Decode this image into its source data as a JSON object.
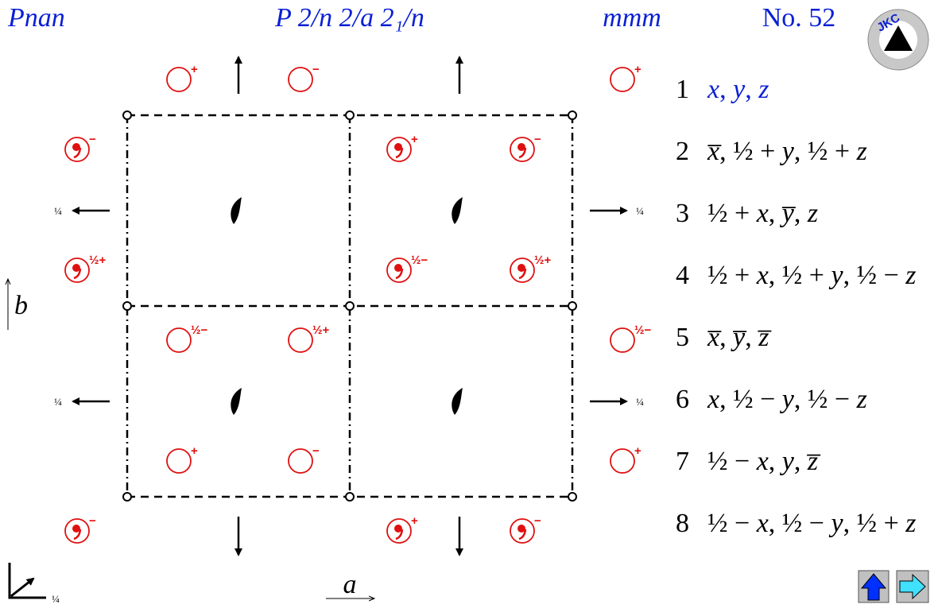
{
  "header": {
    "short_symbol": "Pnan",
    "full_symbol": "P 2/n 2/a 2₁/n",
    "point_group": "mmm",
    "number": "No. 52",
    "logo": "JKC"
  },
  "diagram": {
    "symbols": [
      {
        "label": "+",
        "comma": false
      },
      {
        "label": "−",
        "comma": false
      },
      {
        "label": "+",
        "comma": false
      },
      {
        "label": "−",
        "comma": true
      },
      {
        "label": "+",
        "comma": true
      },
      {
        "label": "−",
        "comma": true
      },
      {
        "label": "½+",
        "comma": true
      },
      {
        "label": "½−",
        "comma": true
      },
      {
        "label": "½+",
        "comma": true
      },
      {
        "label": "½−",
        "comma": false
      },
      {
        "label": "½+",
        "comma": false
      },
      {
        "label": "½−",
        "comma": false
      },
      {
        "label": "+",
        "comma": false
      },
      {
        "label": "−",
        "comma": false
      },
      {
        "label": "+",
        "comma": false
      },
      {
        "label": "−",
        "comma": true
      },
      {
        "label": "+",
        "comma": true
      },
      {
        "label": "−",
        "comma": true
      }
    ],
    "arrow_heights": [
      "¼",
      "¼",
      "¼",
      "¼"
    ],
    "axis_a": "a",
    "axis_b": "b",
    "axis_c_height": "¼"
  },
  "positions": [
    {
      "number": "1",
      "coords": "x, y, z"
    },
    {
      "number": "2",
      "coords": "x̅, ½ + y, ½ + z"
    },
    {
      "number": "3",
      "coords": "½ + x, y̅, z"
    },
    {
      "number": "4",
      "coords": "½ + x, ½ + y, ½ − z"
    },
    {
      "number": "5",
      "coords": "x̅, y̅, z̅"
    },
    {
      "number": "6",
      "coords": "x, ½ − y, ½ − z"
    },
    {
      "number": "7",
      "coords": "½ − x, y, z̅"
    },
    {
      "number": "8",
      "coords": "½ − x, ½ − y, ½ + z"
    }
  ]
}
